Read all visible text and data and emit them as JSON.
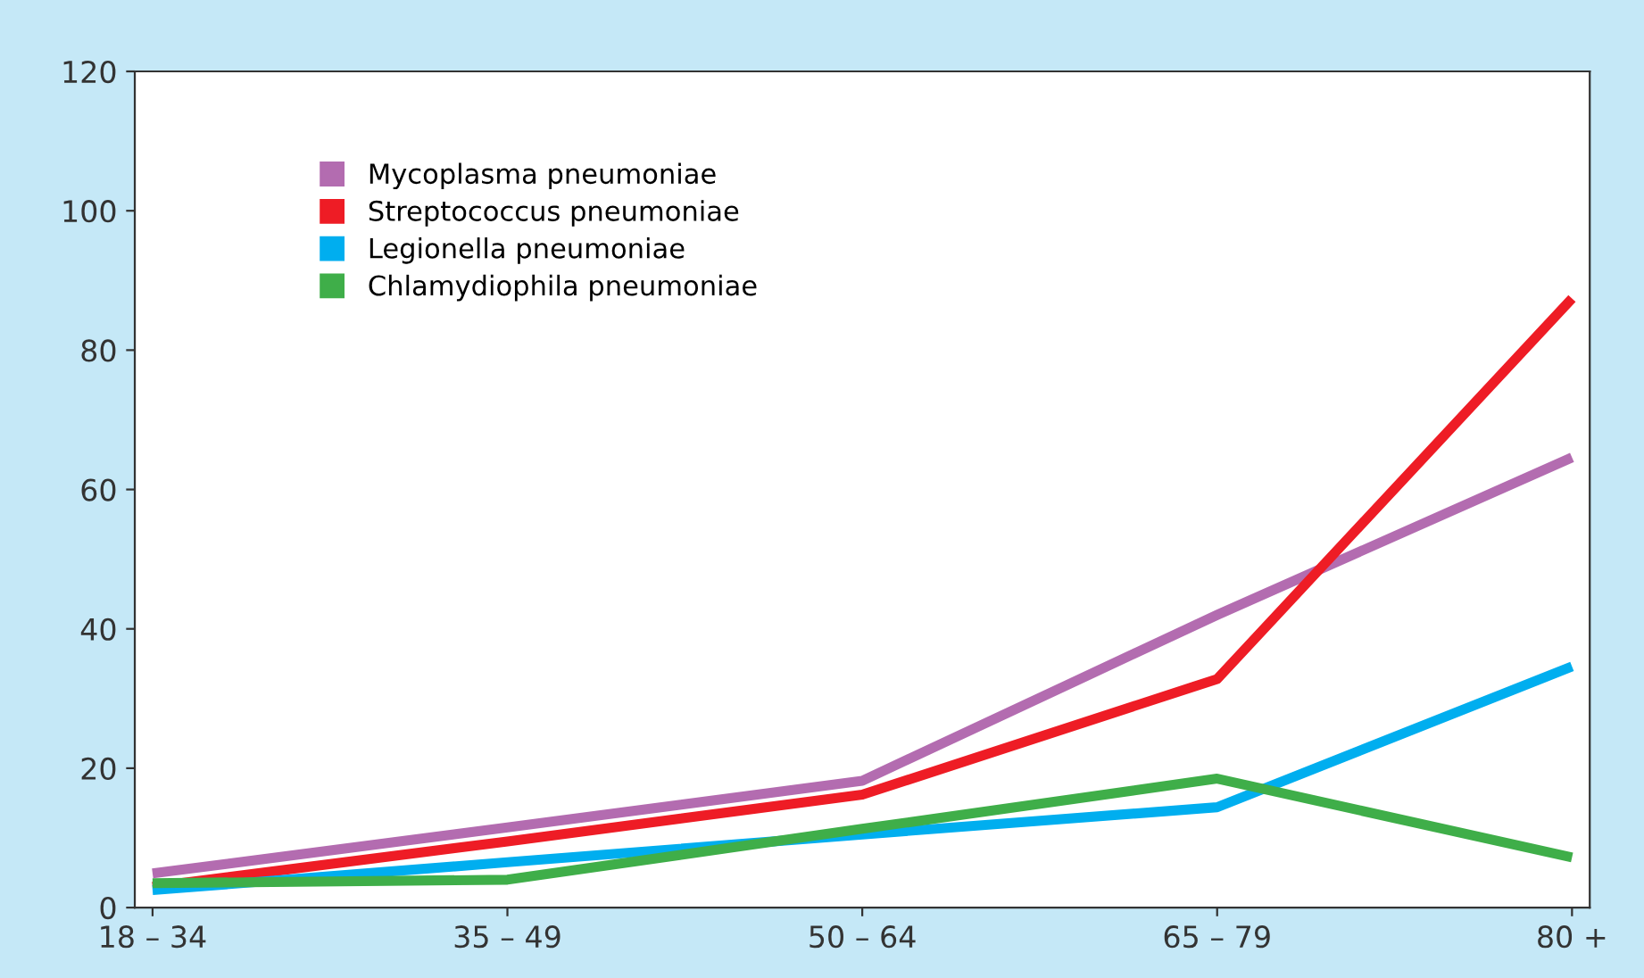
{
  "chart_data": {
    "type": "line",
    "categories": [
      "18 – 34",
      "35 – 49",
      "50 – 64",
      "65 – 79",
      "80 +"
    ],
    "series": [
      {
        "name": "Mycoplasma pneumoniae",
        "color": "#b36cb0",
        "values": [
          4.9,
          11.5,
          18.2,
          42,
          64.6
        ]
      },
      {
        "name": "Streptococcus pneumoniae",
        "color": "#ee1c25",
        "values": [
          3,
          9.5,
          16.2,
          32.8,
          87.4
        ]
      },
      {
        "name": "Legionella pneumoniae",
        "color": "#00aeef",
        "values": [
          2.5,
          6.5,
          10.5,
          14.4,
          34.6
        ]
      },
      {
        "name": "Chlamydiophila pneumoniae",
        "color": "#3fae49",
        "values": [
          3.5,
          4,
          11.3,
          18.5,
          7.2
        ]
      }
    ],
    "ylim": [
      0,
      120
    ],
    "yticks": [
      0,
      20,
      40,
      60,
      80,
      100,
      120
    ],
    "legend": "top left",
    "grid": false,
    "marker": "none",
    "line_style": "solid"
  }
}
